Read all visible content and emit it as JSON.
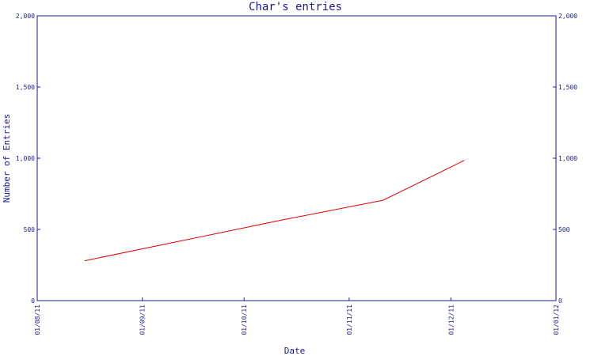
{
  "chart_data": {
    "type": "line",
    "title": "Char's entries",
    "xlabel": "Date",
    "ylabel": "Number of Entries",
    "x_ticks": [
      "01/08/11",
      "01/09/11",
      "01/10/11",
      "01/11/11",
      "01/12/11",
      "01/01/12"
    ],
    "x_range": [
      "01/08/11",
      "01/01/12"
    ],
    "y_ticks": [
      "0",
      "500",
      "1,000",
      "1,500",
      "2,000"
    ],
    "ylim": [
      0,
      2000
    ],
    "grid": false,
    "series": [
      {
        "color": "#e00000",
        "points": [
          {
            "x": "15/08/11",
            "y": 280
          },
          {
            "x": "12/10/11",
            "y": 565
          },
          {
            "x": "11/11/11",
            "y": 705
          },
          {
            "x": "05/12/11",
            "y": 985
          }
        ]
      }
    ]
  }
}
